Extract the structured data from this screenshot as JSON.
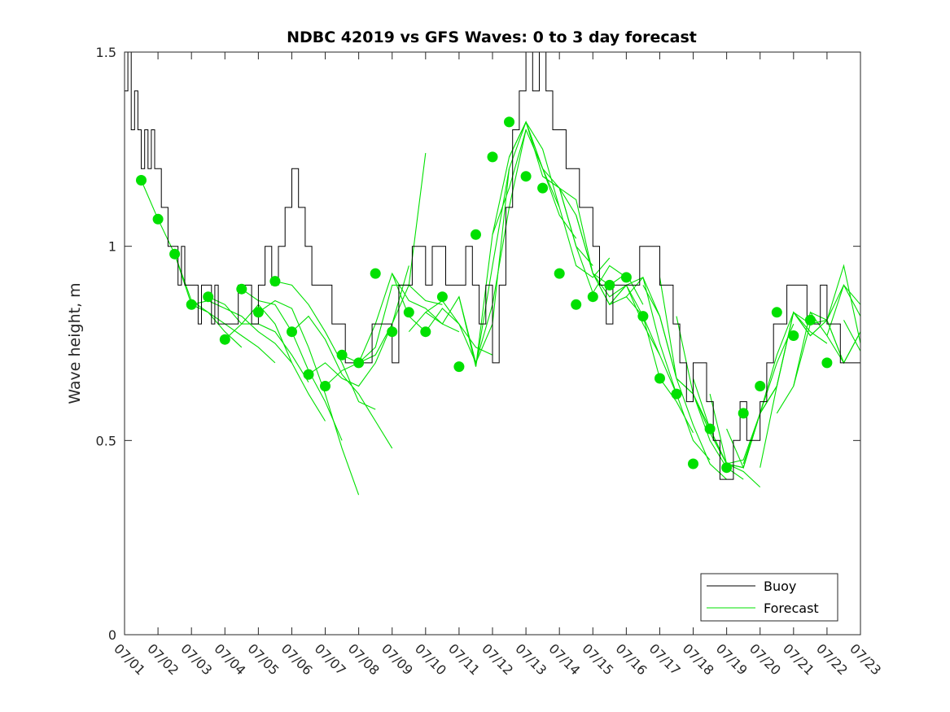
{
  "chart_data": {
    "type": "line",
    "title": "NDBC 42019 vs GFS Waves: 0 to 3 day forecast",
    "xlabel": "",
    "ylabel": "Wave height, m",
    "ylim": [
      0,
      1.5
    ],
    "xlim_days": [
      0,
      22
    ],
    "x_tick_labels": [
      "07/01",
      "07/02",
      "07/03",
      "07/04",
      "07/05",
      "07/06",
      "07/07",
      "07/08",
      "07/09",
      "07/10",
      "07/11",
      "07/12",
      "07/13",
      "07/14",
      "07/15",
      "07/16",
      "07/17",
      "07/18",
      "07/19",
      "07/20",
      "07/21",
      "07/22",
      "07/23"
    ],
    "y_tick_labels": [
      "0",
      "0.5",
      "1",
      "1.5"
    ],
    "y_ticks": [
      0,
      0.5,
      1,
      1.5
    ],
    "grid": false,
    "legend": {
      "placement": "bottom-right",
      "entries": [
        {
          "label": "Buoy",
          "color": "#000000"
        },
        {
          "label": "Forecast",
          "color": "#00e000"
        }
      ]
    },
    "colors": {
      "buoy": "#000000",
      "forecast": "#00e000",
      "markers": "#00e000"
    },
    "buoy": {
      "name": "Buoy",
      "x": [
        0,
        0.1,
        0.2,
        0.3,
        0.4,
        0.5,
        0.6,
        0.7,
        0.8,
        0.9,
        1.0,
        1.1,
        1.2,
        1.3,
        1.4,
        1.5,
        1.6,
        1.7,
        1.8,
        1.9,
        2.0,
        2.1,
        2.2,
        2.3,
        2.4,
        2.5,
        2.6,
        2.7,
        2.8,
        2.9,
        3.0,
        3.2,
        3.4,
        3.6,
        3.8,
        4.0,
        4.2,
        4.4,
        4.6,
        4.8,
        5.0,
        5.2,
        5.4,
        5.6,
        5.8,
        6.0,
        6.2,
        6.4,
        6.6,
        6.8,
        7.0,
        7.2,
        7.4,
        7.6,
        7.8,
        8.0,
        8.2,
        8.4,
        8.6,
        8.8,
        9.0,
        9.2,
        9.4,
        9.6,
        9.8,
        10.0,
        10.2,
        10.4,
        10.6,
        10.8,
        11.0,
        11.2,
        11.4,
        11.6,
        11.8,
        12.0,
        12.2,
        12.4,
        12.6,
        12.8,
        13.0,
        13.2,
        13.4,
        13.6,
        13.8,
        14.0,
        14.2,
        14.4,
        14.6,
        14.8,
        15.0,
        15.2,
        15.4,
        15.6,
        15.8,
        16.0,
        16.2,
        16.4,
        16.6,
        16.8,
        17.0,
        17.2,
        17.4,
        17.6,
        17.8,
        18.0,
        18.2,
        18.4,
        18.6,
        18.8,
        19.0,
        19.2,
        19.4,
        19.6,
        19.8,
        20.0,
        20.2,
        20.4,
        20.6,
        20.8,
        21.0,
        21.2,
        21.4,
        21.6,
        21.8,
        22.0
      ],
      "values": [
        1.4,
        1.5,
        1.3,
        1.4,
        1.3,
        1.2,
        1.3,
        1.2,
        1.3,
        1.2,
        1.2,
        1.1,
        1.1,
        1.0,
        1.0,
        1.0,
        0.9,
        1.0,
        0.9,
        0.9,
        0.9,
        0.9,
        0.8,
        0.9,
        0.9,
        0.9,
        0.8,
        0.9,
        0.8,
        0.8,
        0.8,
        0.8,
        0.9,
        0.9,
        0.8,
        0.9,
        1.0,
        0.9,
        1.0,
        1.1,
        1.2,
        1.1,
        1.0,
        0.9,
        0.9,
        0.9,
        0.8,
        0.8,
        0.7,
        0.7,
        0.7,
        0.7,
        0.8,
        0.8,
        0.8,
        0.7,
        0.9,
        0.9,
        1.0,
        1.0,
        0.9,
        1.0,
        1.0,
        0.9,
        0.9,
        0.9,
        1.0,
        0.9,
        0.8,
        0.9,
        0.7,
        0.9,
        1.1,
        1.3,
        1.4,
        1.5,
        1.4,
        1.5,
        1.4,
        1.3,
        1.3,
        1.2,
        1.2,
        1.1,
        1.1,
        1.0,
        0.9,
        0.8,
        0.9,
        0.9,
        0.9,
        0.9,
        1.0,
        1.0,
        1.0,
        0.9,
        0.9,
        0.8,
        0.7,
        0.6,
        0.7,
        0.7,
        0.6,
        0.5,
        0.4,
        0.4,
        0.5,
        0.6,
        0.5,
        0.5,
        0.6,
        0.7,
        0.8,
        0.8,
        0.9,
        0.9,
        0.9,
        0.8,
        0.8,
        0.9,
        0.8,
        0.8,
        0.7,
        0.7,
        0.7,
        0.7
      ]
    },
    "forecast_runs": [
      {
        "x": [
          0.5,
          1.0,
          1.5,
          2.0,
          2.5,
          3.0,
          3.5
        ],
        "values": [
          1.17,
          1.07,
          0.98,
          0.85,
          0.83,
          0.78,
          0.74
        ]
      },
      {
        "x": [
          1.5,
          2.0,
          2.5,
          3.0,
          3.5,
          4.0,
          4.5
        ],
        "values": [
          0.98,
          0.86,
          0.83,
          0.8,
          0.77,
          0.74,
          0.7
        ]
      },
      {
        "x": [
          2.0,
          2.5,
          3.0,
          3.5,
          4.0,
          4.5,
          5.0
        ],
        "values": [
          0.85,
          0.86,
          0.84,
          0.82,
          0.78,
          0.75,
          0.7
        ]
      },
      {
        "x": [
          2.5,
          3.0,
          3.5,
          4.0,
          4.5,
          5.0,
          5.5
        ],
        "values": [
          0.87,
          0.85,
          0.8,
          0.8,
          0.78,
          0.72,
          0.65
        ]
      },
      {
        "x": [
          3.0,
          3.5,
          4.0,
          4.5,
          5.0,
          5.5,
          6.0
        ],
        "values": [
          0.76,
          0.8,
          0.85,
          0.8,
          0.7,
          0.62,
          0.55
        ]
      },
      {
        "x": [
          3.5,
          4.0,
          4.5,
          5.0,
          5.5,
          6.0,
          6.5
        ],
        "values": [
          0.89,
          0.86,
          0.85,
          0.78,
          0.68,
          0.6,
          0.5
        ]
      },
      {
        "x": [
          4.0,
          4.5,
          5.0,
          5.5,
          6.0,
          6.5,
          7.0
        ],
        "values": [
          0.83,
          0.86,
          0.84,
          0.74,
          0.62,
          0.48,
          0.36
        ]
      },
      {
        "x": [
          4.5,
          5.0,
          5.5,
          6.0,
          6.5,
          7.0,
          7.5
        ],
        "values": [
          0.91,
          0.9,
          0.85,
          0.78,
          0.7,
          0.6,
          0.58
        ]
      },
      {
        "x": [
          5.0,
          5.5,
          6.0,
          6.5,
          7.0,
          7.5,
          8.0
        ],
        "values": [
          0.78,
          0.82,
          0.76,
          0.67,
          0.62,
          0.55,
          0.48
        ]
      },
      {
        "x": [
          5.5,
          6.0,
          6.5,
          7.0,
          7.5,
          8.0,
          8.5
        ],
        "values": [
          0.67,
          0.7,
          0.66,
          0.64,
          0.7,
          0.8,
          0.95
        ]
      },
      {
        "x": [
          6.0,
          6.5,
          7.0,
          7.5,
          8.0,
          8.5,
          9.0
        ],
        "values": [
          0.64,
          0.68,
          0.7,
          0.72,
          0.8,
          0.9,
          1.24
        ]
      },
      {
        "x": [
          6.5,
          7.0,
          7.5,
          8.0,
          8.5,
          9.0,
          9.5
        ],
        "values": [
          0.72,
          0.7,
          0.74,
          0.9,
          0.9,
          0.86,
          0.85
        ]
      },
      {
        "x": [
          7.0,
          7.5,
          8.0,
          8.5,
          9.0,
          9.5,
          10.0
        ],
        "values": [
          0.7,
          0.8,
          0.93,
          0.86,
          0.84,
          0.8,
          0.78
        ]
      },
      {
        "x": [
          8.0,
          8.5,
          9.0,
          9.5,
          10.0,
          10.5,
          11.0
        ],
        "values": [
          0.93,
          0.82,
          0.78,
          0.84,
          0.8,
          0.74,
          0.72
        ]
      },
      {
        "x": [
          8.5,
          9.0,
          9.5,
          10.0,
          10.5,
          11.0,
          11.5
        ],
        "values": [
          0.78,
          0.83,
          0.86,
          0.8,
          0.7,
          0.8,
          1.2
        ]
      },
      {
        "x": [
          9.0,
          9.5,
          10.0,
          10.5,
          11.0,
          11.5,
          12.0
        ],
        "values": [
          0.83,
          0.8,
          0.87,
          0.7,
          0.85,
          1.1,
          1.3
        ]
      },
      {
        "x": [
          10.0,
          10.5,
          11.0,
          11.5,
          12.0,
          12.5,
          13.0
        ],
        "values": [
          0.87,
          0.69,
          0.95,
          1.2,
          1.32,
          1.25,
          1.1
        ]
      },
      {
        "x": [
          10.5,
          11.0,
          11.5,
          12.0,
          12.5,
          13.0,
          13.5
        ],
        "values": [
          0.69,
          1.03,
          1.15,
          1.3,
          1.2,
          1.08,
          1.02
        ]
      },
      {
        "x": [
          11.0,
          11.5,
          12.0,
          12.5,
          13.0,
          13.5,
          14.0
        ],
        "values": [
          1.03,
          1.23,
          1.32,
          1.18,
          1.15,
          1.0,
          0.95
        ]
      },
      {
        "x": [
          11.5,
          12.0,
          12.5,
          13.0,
          13.5,
          14.0,
          14.5
        ],
        "values": [
          1.23,
          1.32,
          1.2,
          1.1,
          0.95,
          0.92,
          0.97
        ]
      },
      {
        "x": [
          12.0,
          12.5,
          13.0,
          13.5,
          14.0,
          14.5,
          15.0
        ],
        "values": [
          1.32,
          1.2,
          1.15,
          1.0,
          0.88,
          0.95,
          0.92
        ]
      },
      {
        "x": [
          12.5,
          13.0,
          13.5,
          14.0,
          14.5,
          15.0,
          15.5
        ],
        "values": [
          1.18,
          1.15,
          1.12,
          0.93,
          0.9,
          0.93,
          0.85
        ]
      },
      {
        "x": [
          13.0,
          13.5,
          14.0,
          14.5,
          15.0,
          15.5,
          16.0
        ],
        "values": [
          1.15,
          1.08,
          0.93,
          0.85,
          0.9,
          0.8,
          0.72
        ]
      },
      {
        "x": [
          13.5,
          14.0,
          14.5,
          15.0,
          15.5,
          16.0,
          16.5
        ],
        "values": [
          1.08,
          0.93,
          0.85,
          0.87,
          0.82,
          0.72,
          0.62
        ]
      },
      {
        "x": [
          14.0,
          14.5,
          15.0,
          15.5,
          16.0,
          16.5,
          17.0
        ],
        "values": [
          0.93,
          0.87,
          0.9,
          0.82,
          0.66,
          0.6,
          0.52
        ]
      },
      {
        "x": [
          14.5,
          15.0,
          15.5,
          16.0,
          16.5,
          17.0,
          17.5
        ],
        "values": [
          0.85,
          0.9,
          0.92,
          0.75,
          0.62,
          0.5,
          0.45
        ]
      },
      {
        "x": [
          15.0,
          15.5,
          16.0,
          16.5,
          17.0,
          17.5,
          18.0
        ],
        "values": [
          0.87,
          0.92,
          0.82,
          0.66,
          0.54,
          0.44,
          0.4
        ]
      },
      {
        "x": [
          15.5,
          16.0,
          16.5,
          17.0,
          17.5,
          18.0,
          18.5
        ],
        "values": [
          0.9,
          0.82,
          0.66,
          0.62,
          0.5,
          0.43,
          0.4
        ]
      },
      {
        "x": [
          16.0,
          16.5,
          17.0,
          17.5,
          18.0,
          18.5,
          19.0
        ],
        "values": [
          0.92,
          0.66,
          0.62,
          0.52,
          0.44,
          0.42,
          0.38
        ]
      },
      {
        "x": [
          16.5,
          17.0,
          17.5,
          18.0,
          18.5,
          19.0,
          19.5
        ],
        "values": [
          0.82,
          0.62,
          0.53,
          0.44,
          0.45,
          0.57,
          0.64
        ]
      },
      {
        "x": [
          17.0,
          17.5,
          18.0,
          18.5,
          19.0,
          19.5,
          20.0
        ],
        "values": [
          0.66,
          0.53,
          0.44,
          0.43,
          0.57,
          0.7,
          0.8
        ]
      },
      {
        "x": [
          17.5,
          18.0,
          18.5,
          19.0,
          19.5,
          20.0,
          20.5
        ],
        "values": [
          0.62,
          0.44,
          0.43,
          0.57,
          0.72,
          0.83,
          0.8
        ]
      },
      {
        "x": [
          18.0,
          18.5,
          19.0,
          19.5,
          20.0,
          20.5,
          21.0
        ],
        "values": [
          0.53,
          0.43,
          0.57,
          0.64,
          0.83,
          0.78,
          0.75
        ]
      },
      {
        "x": [
          18.5,
          19.0,
          19.5,
          20.0,
          20.5,
          21.0,
          21.5
        ],
        "values": [
          0.44,
          0.57,
          0.64,
          0.83,
          0.77,
          0.81,
          0.7
        ]
      },
      {
        "x": [
          19.0,
          19.5,
          20.0,
          20.5,
          21.0,
          21.5,
          22.0
        ],
        "values": [
          0.43,
          0.64,
          0.83,
          0.77,
          0.81,
          0.7,
          0.78
        ]
      },
      {
        "x": [
          19.5,
          20.0,
          20.5,
          21.0,
          21.5,
          22.0
        ],
        "values": [
          0.57,
          0.64,
          0.8,
          0.81,
          0.9,
          0.85
        ]
      },
      {
        "x": [
          20.0,
          20.5,
          21.0,
          21.5,
          22.0
        ],
        "values": [
          0.64,
          0.83,
          0.77,
          0.9,
          0.82
        ]
      },
      {
        "x": [
          20.5,
          21.0,
          21.5,
          22.0
        ],
        "values": [
          0.83,
          0.81,
          0.95,
          0.75
        ]
      },
      {
        "x": [
          21.0,
          21.5,
          22.0
        ],
        "values": [
          0.77,
          0.7,
          0.78
        ]
      },
      {
        "x": [
          21.5,
          22.0
        ],
        "values": [
          0.81,
          0.73
        ]
      }
    ],
    "forecast_analysis_points": {
      "x": [
        0.5,
        1.0,
        1.5,
        2.0,
        2.5,
        3.0,
        3.5,
        4.0,
        4.5,
        5.0,
        5.5,
        6.0,
        6.5,
        7.0,
        7.5,
        8.0,
        8.5,
        9.0,
        9.5,
        10.0,
        10.5,
        11.0,
        11.5,
        12.0,
        12.5,
        13.0,
        13.5,
        14.0,
        14.5,
        15.0,
        15.5,
        16.0,
        16.5,
        17.0,
        17.5,
        18.0,
        18.5,
        19.0,
        19.5,
        20.0,
        20.5,
        21.0
      ],
      "values": [
        1.17,
        1.07,
        0.98,
        0.85,
        0.87,
        0.76,
        0.89,
        0.83,
        0.91,
        0.78,
        0.67,
        0.64,
        0.72,
        0.7,
        0.93,
        0.78,
        0.83,
        0.78,
        0.87,
        0.69,
        1.03,
        1.23,
        1.32,
        1.18,
        1.15,
        0.93,
        0.85,
        0.87,
        0.9,
        0.92,
        0.82,
        0.66,
        0.62,
        0.44,
        0.53,
        0.43,
        0.57,
        0.64,
        0.83,
        0.77,
        0.81,
        0.7
      ]
    }
  }
}
